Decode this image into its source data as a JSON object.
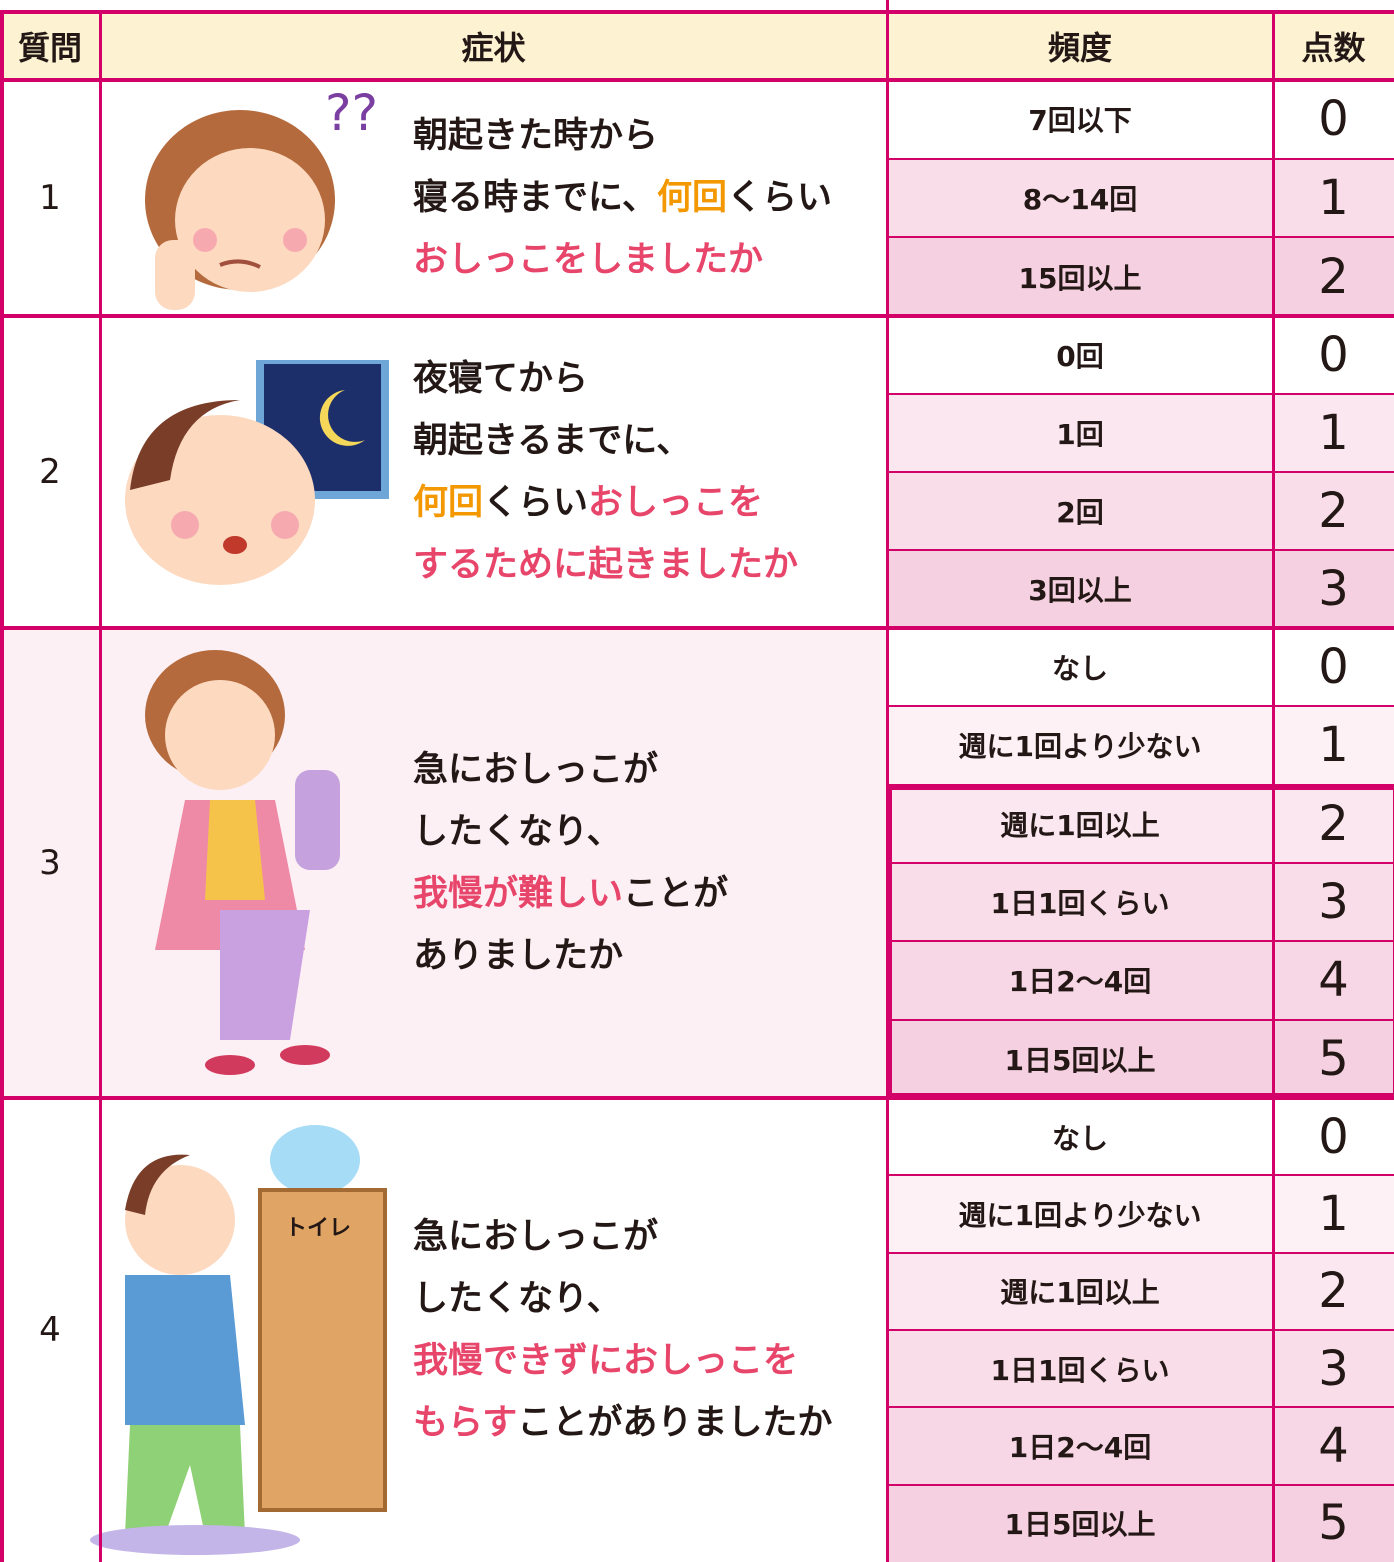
{
  "header": {
    "question": "質問",
    "symptom": "症状",
    "frequency": "頻度",
    "score": "点数"
  },
  "rows": [
    {
      "number": 1,
      "symptom": [
        [
          {
            "text": "朝起きた時から",
            "color": "#231815"
          }
        ],
        [
          {
            "text": "寝る時までに、",
            "color": "#231815"
          },
          {
            "text": "何回",
            "color": "#f39800"
          },
          {
            "text": "くらい",
            "color": "#231815"
          }
        ],
        [
          {
            "text": "おしっこをしましたか",
            "color": "#e8456b"
          }
        ]
      ],
      "options": [
        {
          "frequency": "7回以下",
          "score": 0
        },
        {
          "frequency": "8〜14回",
          "score": 1
        },
        {
          "frequency": "15回以上",
          "score": 2
        }
      ]
    },
    {
      "number": 2,
      "symptom": [
        [
          {
            "text": "夜寝てから",
            "color": "#231815"
          }
        ],
        [
          {
            "text": "朝起きるまでに、",
            "color": "#231815"
          }
        ],
        [
          {
            "text": "何回",
            "color": "#f39800"
          },
          {
            "text": "くらい",
            "color": "#231815"
          },
          {
            "text": "おしっこを",
            "color": "#e8456b"
          }
        ],
        [
          {
            "text": "するために起きましたか",
            "color": "#e8456b"
          }
        ]
      ],
      "options": [
        {
          "frequency": "0回",
          "score": 0
        },
        {
          "frequency": "1回",
          "score": 1
        },
        {
          "frequency": "2回",
          "score": 2
        },
        {
          "frequency": "3回以上",
          "score": 3
        }
      ]
    },
    {
      "number": 3,
      "symptom": [
        [
          {
            "text": "急におしっこが",
            "color": "#231815"
          }
        ],
        [
          {
            "text": "したくなり、",
            "color": "#231815"
          }
        ],
        [
          {
            "text": "我慢が難しい",
            "color": "#e8456b"
          },
          {
            "text": "ことが",
            "color": "#231815"
          }
        ],
        [
          {
            "text": "ありましたか",
            "color": "#231815"
          }
        ]
      ],
      "options": [
        {
          "frequency": "なし",
          "score": 0
        },
        {
          "frequency": "週に1回より少ない",
          "score": 1
        },
        {
          "frequency": "週に1回以上",
          "score": 2
        },
        {
          "frequency": "1日1回くらい",
          "score": 3
        },
        {
          "frequency": "1日2〜4回",
          "score": 4
        },
        {
          "frequency": "1日5回以上",
          "score": 5
        }
      ]
    },
    {
      "number": 4,
      "symptom": [
        [
          {
            "text": "急におしっこが",
            "color": "#231815"
          }
        ],
        [
          {
            "text": "したくなり、",
            "color": "#231815"
          }
        ],
        [
          {
            "text": "我慢できずにおしっこを",
            "color": "#e8456b"
          }
        ],
        [
          {
            "text": "もらす",
            "color": "#e8456b"
          },
          {
            "text": "ことがありましたか",
            "color": "#231815"
          }
        ]
      ],
      "options": [
        {
          "frequency": "なし",
          "score": 0
        },
        {
          "frequency": "週に1回より少ない",
          "score": 1
        },
        {
          "frequency": "週に1回以上",
          "score": 2
        },
        {
          "frequency": "1日1回くらい",
          "score": 3
        },
        {
          "frequency": "1日2〜4回",
          "score": 4
        },
        {
          "frequency": "1日5回以上",
          "score": 5
        }
      ]
    }
  ]
}
